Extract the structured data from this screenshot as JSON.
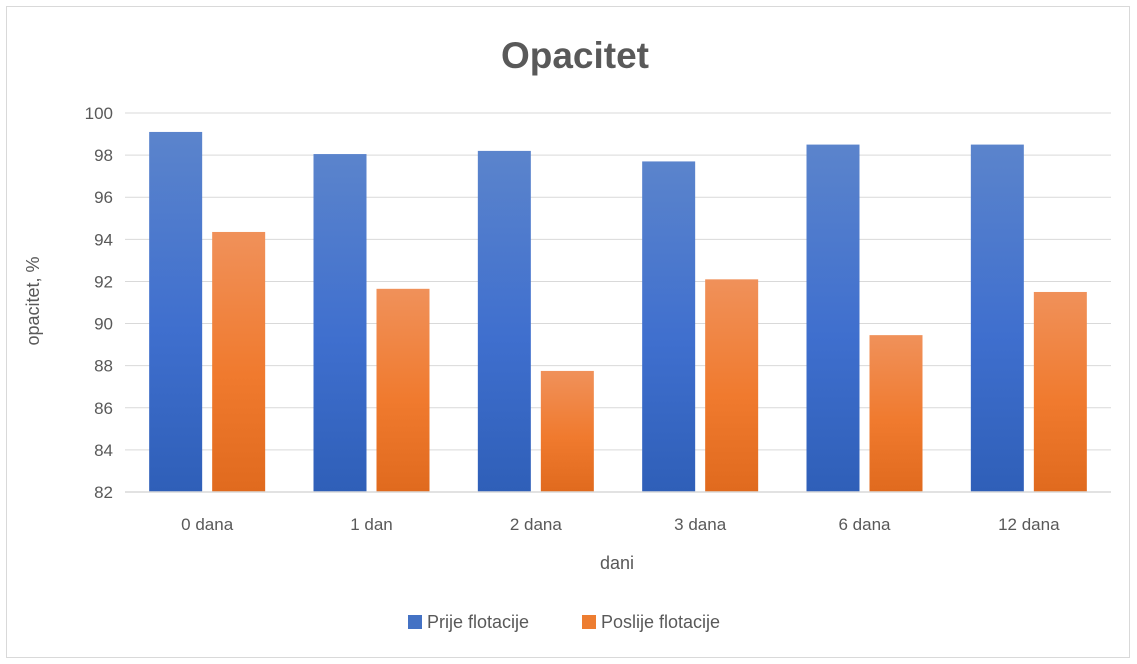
{
  "chart_data": {
    "type": "bar",
    "title": "Opacitet",
    "xlabel": "dani",
    "ylabel": "opacitet, %",
    "categories": [
      "0 dana",
      "1 dan",
      "2 dana",
      "3 dana",
      "6 dana",
      "12 dana"
    ],
    "series": [
      {
        "name": "Prije flotacije",
        "color": "#4472c4",
        "values": [
          99.1,
          98.05,
          98.2,
          97.7,
          98.5,
          98.5
        ]
      },
      {
        "name": "Poslije flotacije",
        "color": "#ed7d31",
        "values": [
          94.35,
          91.65,
          87.75,
          92.1,
          89.45,
          91.5
        ]
      }
    ],
    "ylim": [
      82,
      100
    ],
    "yticks": [
      82,
      84,
      86,
      88,
      90,
      92,
      94,
      96,
      98,
      100
    ],
    "grid": true,
    "legend": "bottom"
  }
}
